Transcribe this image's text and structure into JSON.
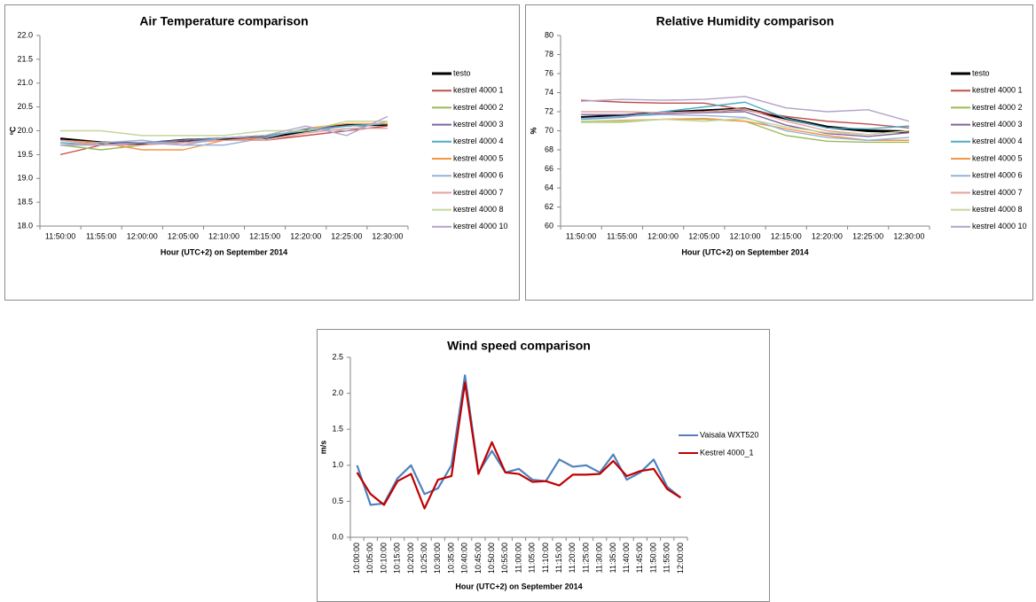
{
  "chart_data": [
    {
      "type": "line",
      "title": "Air Temperature comparison",
      "x_label": "Hour (UTC+2) on September 2014",
      "y_label": "ºC",
      "categories": [
        "11:50:00",
        "11:55:00",
        "12:00:00",
        "12:05:00",
        "12:10:00",
        "12:15:00",
        "12:20:00",
        "12:25:00",
        "12:30:00"
      ],
      "ylim": [
        18,
        22
      ],
      "yticks": [
        {
          "value": 18,
          "label": "18.0"
        },
        {
          "value": 18.5,
          "label": "18.5"
        },
        {
          "value": 19,
          "label": "19.0"
        },
        {
          "value": 19.5,
          "label": "19.5"
        },
        {
          "value": 20,
          "label": "20.0"
        },
        {
          "value": 20.5,
          "label": "20.5"
        },
        {
          "value": 21,
          "label": "21.0"
        },
        {
          "value": 21.5,
          "label": "21.5"
        },
        {
          "value": 22,
          "label": "22.0"
        }
      ],
      "grid": false,
      "legend": "right",
      "series": [
        {
          "name": "testo",
          "color": "#000000",
          "values": [
            19.83,
            19.75,
            19.73,
            19.8,
            19.83,
            19.85,
            20.0,
            20.12,
            20.13
          ]
        },
        {
          "name": "kestrel 4000 1",
          "color": "#c0504d",
          "values": [
            19.5,
            19.7,
            19.75,
            19.75,
            19.8,
            19.8,
            19.9,
            20.0,
            20.1
          ]
        },
        {
          "name": "kestrel 4000 2",
          "color": "#9bbb59",
          "values": [
            19.7,
            19.6,
            19.7,
            19.8,
            19.85,
            19.9,
            20.0,
            20.1,
            20.15
          ]
        },
        {
          "name": "kestrel 4000 3",
          "color": "#8064a2",
          "values": [
            19.8,
            19.75,
            19.75,
            19.8,
            19.85,
            19.85,
            20.05,
            20.1,
            20.15
          ]
        },
        {
          "name": "kestrel 4000 4",
          "color": "#4bacc6",
          "values": [
            19.75,
            19.7,
            19.75,
            19.75,
            19.85,
            19.9,
            20.0,
            20.1,
            20.15
          ]
        },
        {
          "name": "kestrel 4000 5",
          "color": "#f79646",
          "values": [
            19.8,
            19.75,
            19.6,
            19.6,
            19.8,
            19.85,
            20.05,
            20.15,
            20.15
          ]
        },
        {
          "name": "kestrel 4000 6",
          "color": "#95b3d7",
          "values": [
            19.7,
            19.75,
            19.8,
            19.7,
            19.7,
            19.85,
            20.05,
            20.0,
            20.2
          ]
        },
        {
          "name": "kestrel 4000 7",
          "color": "#e6a19e",
          "values": [
            19.8,
            19.7,
            19.7,
            19.75,
            19.8,
            19.8,
            19.95,
            20.05,
            20.05
          ]
        },
        {
          "name": "kestrel 4000 8",
          "color": "#c3d69b",
          "values": [
            20.0,
            20.0,
            19.9,
            19.9,
            19.9,
            20.0,
            20.0,
            20.2,
            20.2
          ]
        },
        {
          "name": "kestrel 4000 10",
          "color": "#b3a2c7",
          "values": [
            19.7,
            19.7,
            19.75,
            19.7,
            19.85,
            19.9,
            20.1,
            19.9,
            20.3
          ]
        }
      ]
    },
    {
      "type": "line",
      "title": "Relative Humidity comparison",
      "x_label": "Hour (UTC+2) on September 2014",
      "y_label": "%",
      "categories": [
        "11:50:00",
        "11:55:00",
        "12:00:00",
        "12:05:00",
        "12:10:00",
        "12:15:00",
        "12:20:00",
        "12:25:00",
        "12:30:00"
      ],
      "ylim": [
        60,
        80
      ],
      "yticks": [
        60,
        62,
        64,
        66,
        68,
        70,
        72,
        74,
        76,
        78,
        80
      ],
      "grid": false,
      "legend": "right",
      "series": [
        {
          "name": "testo",
          "color": "#000000",
          "values": [
            71.4,
            71.6,
            71.9,
            72.1,
            72.3,
            71.3,
            70.4,
            70.0,
            69.9
          ]
        },
        {
          "name": "kestrel 4000 1",
          "color": "#c0504d",
          "values": [
            73.2,
            73.0,
            72.9,
            72.9,
            72.2,
            71.5,
            71.0,
            70.7,
            70.3
          ]
        },
        {
          "name": "kestrel 4000 2",
          "color": "#9bbb59",
          "values": [
            70.9,
            70.9,
            71.2,
            71.2,
            71.0,
            69.5,
            68.9,
            68.8,
            68.8
          ]
        },
        {
          "name": "kestrel 4000 3",
          "color": "#8064a2",
          "values": [
            71.7,
            71.7,
            71.8,
            71.9,
            72.0,
            70.6,
            69.7,
            69.4,
            69.8
          ]
        },
        {
          "name": "kestrel 4000 4",
          "color": "#4bacc6",
          "values": [
            71.2,
            71.4,
            72.0,
            72.5,
            73.0,
            71.3,
            70.3,
            70.2,
            70.5
          ]
        },
        {
          "name": "kestrel 4000 5",
          "color": "#f79646",
          "values": [
            71.0,
            71.1,
            71.2,
            71.3,
            71.0,
            70.2,
            69.5,
            69.0,
            69.0
          ]
        },
        {
          "name": "kestrel 4000 6",
          "color": "#95b3d7",
          "values": [
            71.3,
            71.5,
            71.7,
            71.6,
            71.4,
            70.0,
            69.3,
            69.0,
            69.3
          ]
        },
        {
          "name": "kestrel 4000 7",
          "color": "#e6a19e",
          "values": [
            72.0,
            72.0,
            71.9,
            72.0,
            72.3,
            71.0,
            70.0,
            69.6,
            70.0
          ]
        },
        {
          "name": "kestrel 4000 8",
          "color": "#c3d69b",
          "values": [
            71.0,
            71.0,
            71.2,
            71.0,
            71.3,
            70.4,
            69.8,
            69.6,
            70.0
          ]
        },
        {
          "name": "kestrel 4000 10",
          "color": "#b3a2c7",
          "values": [
            73.1,
            73.3,
            73.2,
            73.3,
            73.6,
            72.4,
            72.0,
            72.2,
            71.0
          ]
        }
      ]
    },
    {
      "type": "line",
      "title": "Wind speed comparison",
      "x_label": "Hour (UTC+2) on September 2014",
      "y_label": "m/s",
      "categories": [
        "10:00:00",
        "10:05:00",
        "10:10:00",
        "10:15:00",
        "10:20:00",
        "10:25:00",
        "10:30:00",
        "10:35:00",
        "10:40:00",
        "10:45:00",
        "10:50:00",
        "10:55:00",
        "11:00:00",
        "11:05:00",
        "11:10:00",
        "11:15:00",
        "11:20:00",
        "11:25:00",
        "11:30:00",
        "11:35:00",
        "11:40:00",
        "11:45:00",
        "11:50:00",
        "11:55:00",
        "12:00:00"
      ],
      "ylim": [
        0,
        2.5
      ],
      "yticks": [
        {
          "value": 0,
          "label": "0.0"
        },
        {
          "value": 0.5,
          "label": "0.5"
        },
        {
          "value": 1,
          "label": "1.0"
        },
        {
          "value": 1.5,
          "label": "1.5"
        },
        {
          "value": 2,
          "label": "2.0"
        },
        {
          "value": 2.5,
          "label": "2.5"
        }
      ],
      "grid": false,
      "legend": "right",
      "series": [
        {
          "name": "Vaisala WXT520",
          "color": "#4f81bd",
          "values": [
            1.0,
            0.45,
            0.47,
            0.82,
            1.0,
            0.6,
            0.68,
            1.0,
            2.25,
            0.9,
            1.2,
            0.9,
            0.95,
            0.8,
            0.78,
            1.08,
            0.98,
            1.0,
            0.9,
            1.15,
            0.8,
            0.9,
            1.08,
            0.7,
            0.55
          ]
        },
        {
          "name": "Kestrel 4000_1",
          "color": "#c00000",
          "values": [
            0.9,
            0.6,
            0.45,
            0.78,
            0.88,
            0.4,
            0.8,
            0.85,
            2.15,
            0.88,
            1.32,
            0.9,
            0.88,
            0.77,
            0.78,
            0.72,
            0.87,
            0.87,
            0.88,
            1.06,
            0.85,
            0.92,
            0.95,
            0.67,
            0.55
          ]
        }
      ]
    }
  ]
}
